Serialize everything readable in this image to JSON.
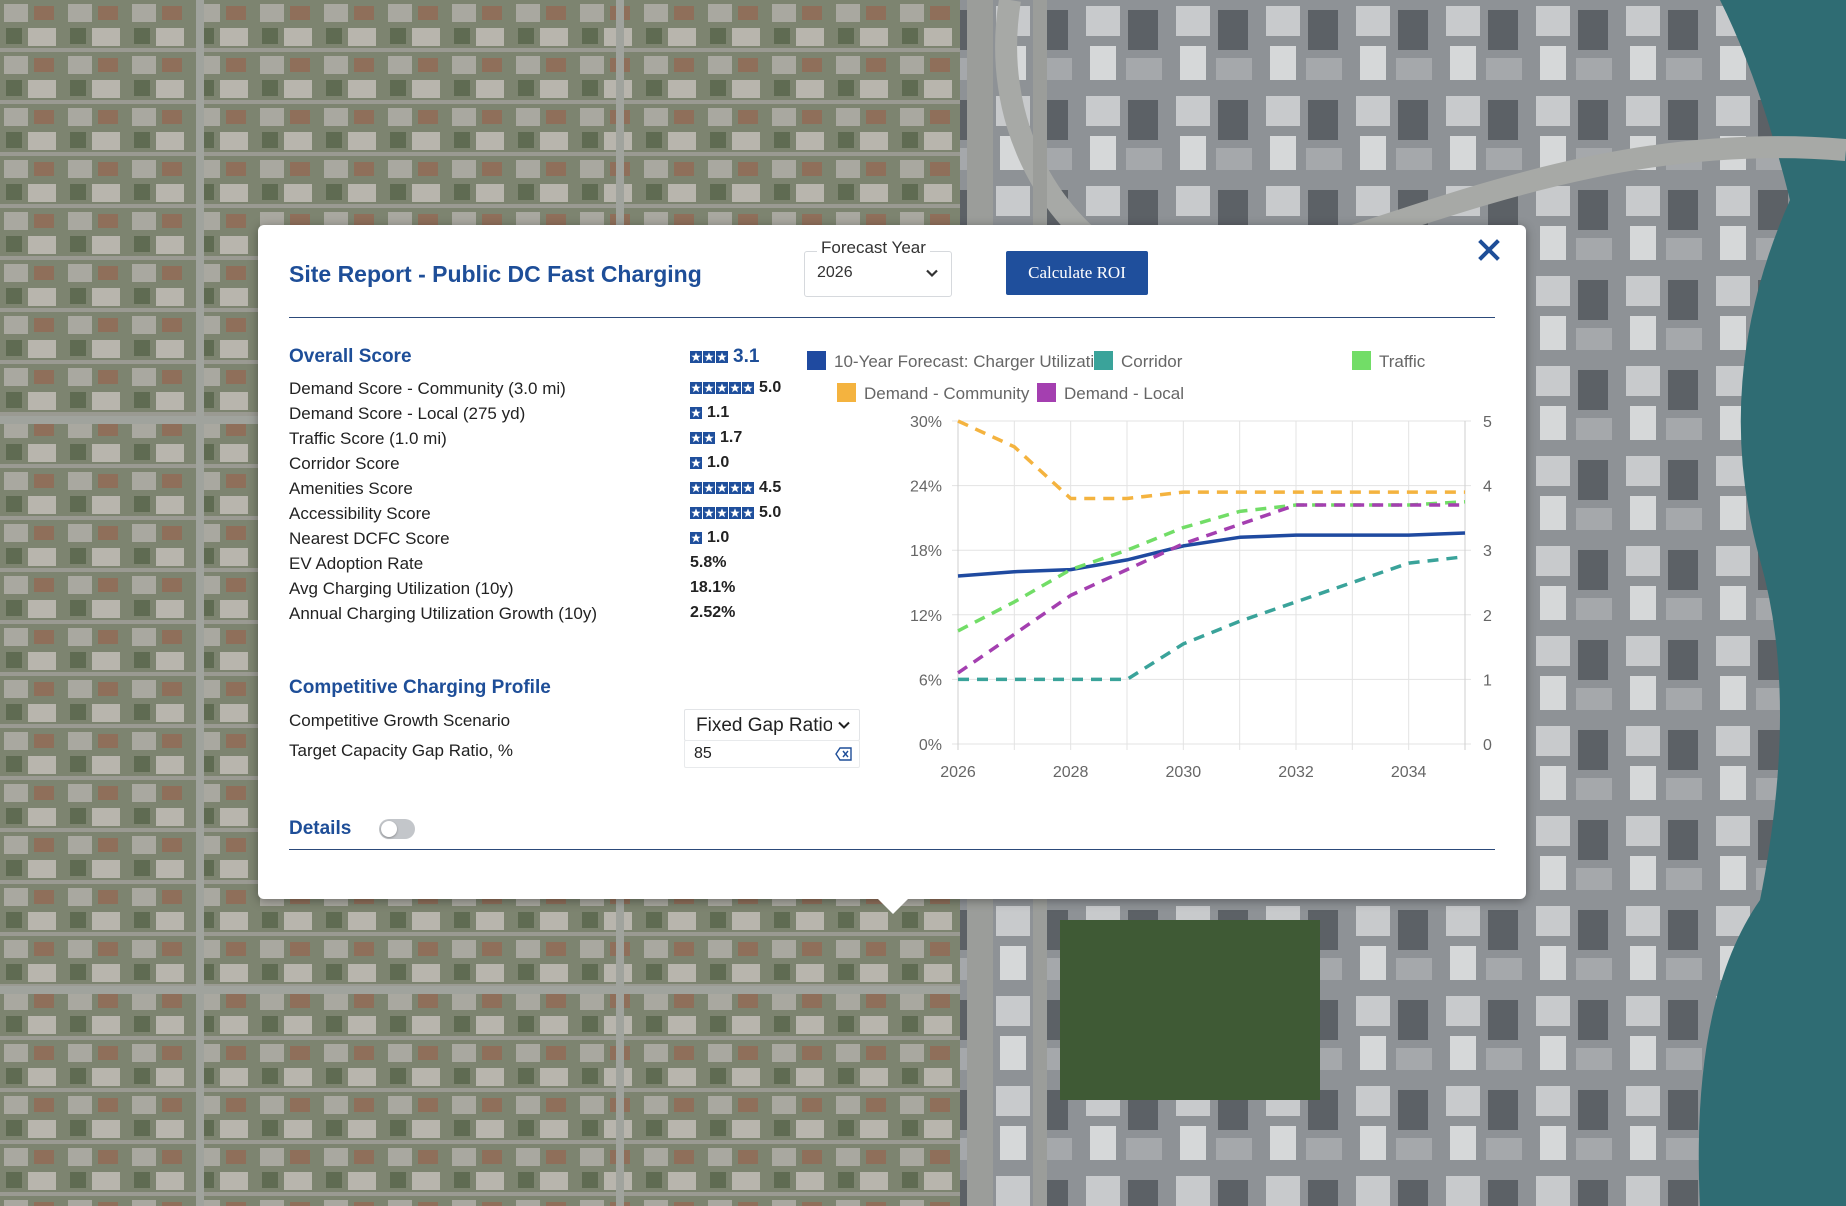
{
  "report": {
    "title": "Site Report - Public DC Fast Charging",
    "forecast_year": {
      "label": "Forecast Year",
      "value": "2026"
    },
    "calculate_button": "Calculate ROI"
  },
  "overall": {
    "title": "Overall Score",
    "stars": 3,
    "value": "3.1"
  },
  "scores": [
    {
      "label": "Demand Score - Community (3.0 mi)",
      "stars": 5,
      "value": "5.0"
    },
    {
      "label": "Demand Score - Local (275 yd)",
      "stars": 1,
      "value": "1.1"
    },
    {
      "label": "Traffic Score (1.0 mi)",
      "stars": 2,
      "value": "1.7"
    },
    {
      "label": "Corridor Score",
      "stars": 1,
      "value": "1.0"
    },
    {
      "label": "Amenities Score",
      "stars": 5,
      "value": "4.5"
    },
    {
      "label": "Accessibility Score",
      "stars": 5,
      "value": "5.0"
    },
    {
      "label": "Nearest DCFC Score",
      "stars": 1,
      "value": "1.0"
    },
    {
      "label": "EV Adoption Rate",
      "stars": 0,
      "value": "5.8%"
    },
    {
      "label": "Avg Charging Utilization (10y)",
      "stars": 0,
      "value": "18.1%"
    },
    {
      "label": "Annual Charging Utilization Growth (10y)",
      "stars": 0,
      "value": "2.52%"
    }
  ],
  "competitive": {
    "title": "Competitive Charging Profile",
    "scenario_label": "Competitive Growth Scenario",
    "scenario_value": "Fixed Gap Ratio",
    "ratio_label": "Target Capacity Gap Ratio, %",
    "ratio_value": "85"
  },
  "details": {
    "label": "Details",
    "enabled": false
  },
  "colors": {
    "accent": "#1e4e98",
    "utilization": "#1f4aa0",
    "corridor": "#3aa39a",
    "traffic": "#72dd67",
    "demand_community": "#f4b33f",
    "demand_local": "#a43fb0"
  },
  "chart_data": {
    "type": "line",
    "x": [
      2026,
      2027,
      2028,
      2029,
      2030,
      2031,
      2032,
      2033,
      2034,
      2035
    ],
    "x_ticks": [
      "2026",
      "2028",
      "2030",
      "2032",
      "2034"
    ],
    "y_left_ticks": [
      "0%",
      "6%",
      "12%",
      "18%",
      "24%",
      "30%"
    ],
    "y_right_ticks": [
      "0",
      "1",
      "2",
      "3",
      "4",
      "5"
    ],
    "y_left_range": [
      0,
      30
    ],
    "y_right_range": [
      0,
      5
    ],
    "grid": true,
    "legend_position": "top",
    "series": [
      {
        "name": "10-Year Forecast: Charger Utilization",
        "axis": "left",
        "style": "solid",
        "color_key": "utilization",
        "values": [
          15.6,
          16.0,
          16.2,
          17.1,
          18.4,
          19.2,
          19.4,
          19.4,
          19.4,
          19.6
        ]
      },
      {
        "name": "Corridor",
        "axis": "right",
        "style": "dashed",
        "color_key": "corridor",
        "values": [
          1.0,
          1.0,
          1.0,
          1.0,
          1.55,
          1.9,
          2.2,
          2.5,
          2.8,
          2.9
        ]
      },
      {
        "name": "Traffic",
        "axis": "right",
        "style": "dashed",
        "color_key": "traffic",
        "values": [
          1.75,
          2.2,
          2.7,
          3.0,
          3.35,
          3.6,
          3.7,
          3.7,
          3.7,
          3.75
        ]
      },
      {
        "name": "Demand - Community",
        "axis": "right",
        "style": "dashed",
        "color_key": "demand_community",
        "values": [
          5.0,
          4.6,
          3.8,
          3.8,
          3.9,
          3.9,
          3.9,
          3.9,
          3.9,
          3.9
        ]
      },
      {
        "name": "Demand - Local",
        "axis": "right",
        "style": "dashed",
        "color_key": "demand_local",
        "values": [
          1.1,
          1.7,
          2.3,
          2.7,
          3.1,
          3.4,
          3.7,
          3.7,
          3.7,
          3.7
        ]
      }
    ]
  }
}
